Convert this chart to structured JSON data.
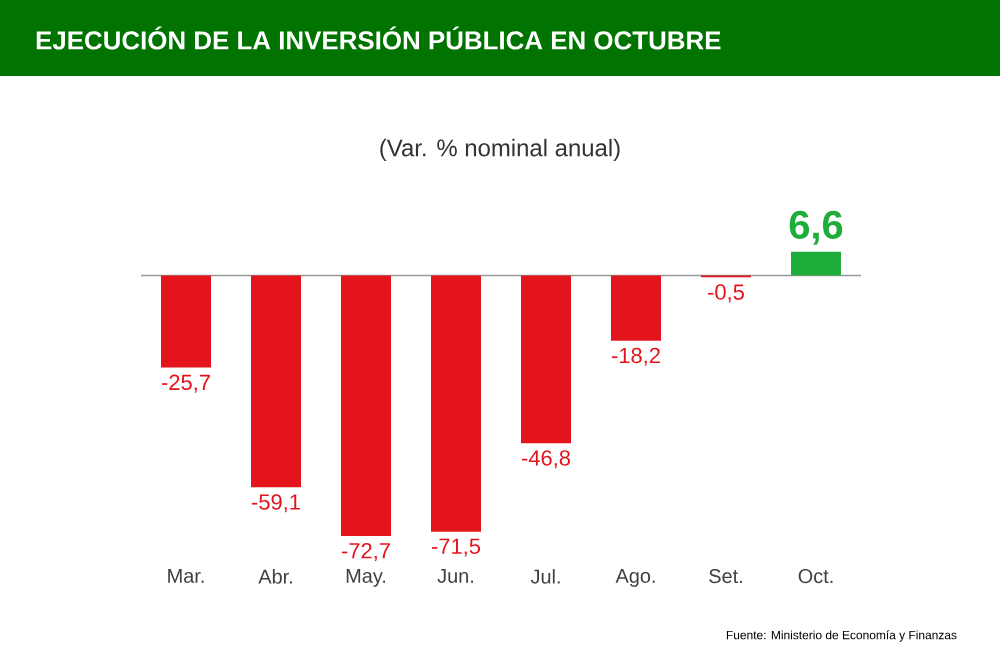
{
  "chart_data": {
    "type": "bar",
    "title": "EJECUCIÓN DE LA INVERSIÓN PÚBLICA EN OCTUBRE",
    "subtitle": "(Var. % nominal anual)",
    "categories": [
      "Mar.",
      "Abr.",
      "May.",
      "Jun.",
      "Jul.",
      "Ago.",
      "Set.",
      "Oct."
    ],
    "values": [
      -25.7,
      -59.1,
      -72.7,
      -71.5,
      -46.8,
      -18.2,
      -0.5,
      6.6
    ],
    "value_labels": [
      "-25,7",
      "-59,1",
      "-72,7",
      "-71,5",
      "-46,8",
      "-18,2",
      "-0,5",
      "6,6"
    ],
    "colors": [
      "#e3141b",
      "#e3141b",
      "#e3141b",
      "#e3141b",
      "#e3141b",
      "#e3141b",
      "#e3141b",
      "#1fad3a"
    ],
    "annotations": [
      "Fuente: Ministerio de Economía y Finanzas"
    ]
  }
}
